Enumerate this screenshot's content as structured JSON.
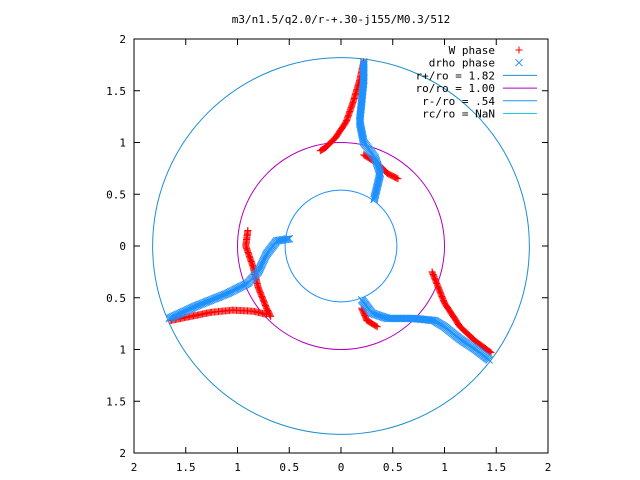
{
  "chart_data": {
    "type": "scatter",
    "title": "m3/n1.5/q2.0/r-+.30-j155/M0.3/512",
    "xlim": [
      -2,
      2
    ],
    "ylim": [
      -2,
      2
    ],
    "x_ticks": [
      -2,
      -1.5,
      -1,
      -0.5,
      0,
      0.5,
      1,
      1.5,
      2
    ],
    "y_ticks": [
      -2,
      -1.5,
      -1,
      -0.5,
      0,
      0.5,
      1,
      1.5,
      2
    ],
    "x_tick_labels": [
      "2",
      "1.5",
      "1",
      "0.5",
      "0",
      "0.5",
      "1",
      "1.5",
      "2"
    ],
    "y_tick_labels": [
      "2",
      "1.5",
      "1",
      "0.5",
      "0",
      "0.5",
      "1",
      "1.5",
      "2"
    ],
    "grid": false,
    "legend_position": "top-right",
    "legend": [
      {
        "label": "W phase",
        "symbol": "+",
        "color": "#ff0000"
      },
      {
        "label": "drho phase",
        "symbol": "x",
        "color": "#1e90ff"
      },
      {
        "label": "r+/ro = 1.82",
        "symbol": "line",
        "color": "#1e8fd0"
      },
      {
        "label": "ro/ro = 1.00",
        "symbol": "line",
        "color": "#b000c0"
      },
      {
        "label": "r-/ro = .54",
        "symbol": "line",
        "color": "#1e90ff"
      },
      {
        "label": "rc/ro = NaN",
        "symbol": "line",
        "color": "#1ec8e0"
      }
    ],
    "circles": [
      {
        "name": "r+/ro = 1.82",
        "r": 1.82,
        "color": "#1e8fd0"
      },
      {
        "name": "ro/ro = 1.00",
        "r": 1.0,
        "color": "#b000c0"
      },
      {
        "name": "r-/ro = .54",
        "r": 0.54,
        "color": "#1e90ff"
      }
    ],
    "series": [
      {
        "name": "W phase",
        "color": "#ff0000",
        "marker": "plus",
        "arms": [
          [
            [
              0.22,
              1.78
            ],
            [
              0.18,
              1.6
            ],
            [
              0.12,
              1.4
            ],
            [
              0.05,
              1.2
            ],
            [
              -0.05,
              1.05
            ],
            [
              -0.15,
              0.95
            ],
            [
              -0.2,
              0.92
            ]
          ],
          [
            [
              0.22,
              0.88
            ],
            [
              0.35,
              0.8
            ],
            [
              0.45,
              0.7
            ],
            [
              0.55,
              0.65
            ]
          ],
          [
            [
              -0.9,
              0.15
            ],
            [
              -0.92,
              0.0
            ],
            [
              -0.85,
              -0.2
            ],
            [
              -0.8,
              -0.4
            ],
            [
              -0.72,
              -0.6
            ],
            [
              -0.68,
              -0.68
            ]
          ],
          [
            [
              -1.65,
              -0.72
            ],
            [
              -1.45,
              -0.68
            ],
            [
              -1.25,
              -0.64
            ],
            [
              -1.05,
              -0.62
            ],
            [
              -0.85,
              -0.63
            ],
            [
              -0.72,
              -0.66
            ]
          ],
          [
            [
              0.88,
              -0.25
            ],
            [
              0.92,
              -0.35
            ],
            [
              1.0,
              -0.55
            ],
            [
              1.15,
              -0.78
            ],
            [
              1.3,
              -0.92
            ],
            [
              1.45,
              -1.03
            ]
          ],
          [
            [
              0.2,
              -0.6
            ],
            [
              0.25,
              -0.72
            ],
            [
              0.35,
              -0.78
            ]
          ]
        ]
      },
      {
        "name": "drho phase",
        "color": "#1e90ff",
        "marker": "cross",
        "arms": [
          [
            [
              0.22,
              1.78
            ],
            [
              0.22,
              1.6
            ],
            [
              0.2,
              1.4
            ],
            [
              0.18,
              1.2
            ],
            [
              0.22,
              1.0
            ],
            [
              0.33,
              0.85
            ],
            [
              0.38,
              0.7
            ],
            [
              0.32,
              0.45
            ]
          ],
          [
            [
              -1.66,
              -0.7
            ],
            [
              -1.4,
              -0.58
            ],
            [
              -1.1,
              -0.46
            ],
            [
              -0.9,
              -0.36
            ],
            [
              -0.8,
              -0.25
            ],
            [
              -0.72,
              -0.08
            ],
            [
              -0.62,
              0.05
            ],
            [
              -0.5,
              0.07
            ]
          ],
          [
            [
              0.2,
              -0.52
            ],
            [
              0.3,
              -0.65
            ],
            [
              0.45,
              -0.7
            ],
            [
              0.7,
              -0.7
            ],
            [
              0.9,
              -0.72
            ],
            [
              1.0,
              -0.78
            ],
            [
              1.15,
              -0.9
            ],
            [
              1.3,
              -1.0
            ],
            [
              1.43,
              -1.1
            ]
          ]
        ]
      }
    ]
  }
}
